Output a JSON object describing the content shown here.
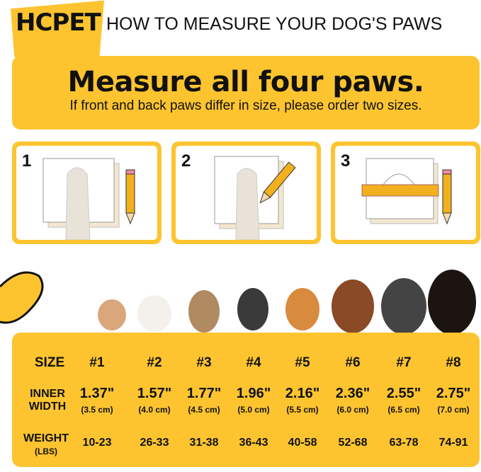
{
  "brand": {
    "logo": "HCPET",
    "title": "HOW TO MEASURE YOUR DOG'S PAWS",
    "accent": "#FDC430"
  },
  "banner": {
    "headline": "Measure all four paws.",
    "subtext": "If front and back paws differ in size, please order two sizes."
  },
  "steps": [
    {
      "number": "1"
    },
    {
      "number": "2"
    },
    {
      "number": "3"
    }
  ],
  "size_table": {
    "labels": {
      "size": "SIZE",
      "width_1": "INNER",
      "width_2": "WIDTH",
      "weight_1": "WEIGHT",
      "weight_2": "(LBS)"
    },
    "columns": [
      {
        "size": "#1",
        "inch": "1.37\"",
        "cm": "(3.5 cm)",
        "weight": "10-23"
      },
      {
        "size": "#2",
        "inch": "1.57\"",
        "cm": "(4.0 cm)",
        "weight": "26-33"
      },
      {
        "size": "#3",
        "inch": "1.77\"",
        "cm": "(4.5 cm)",
        "weight": "31-38"
      },
      {
        "size": "#4",
        "inch": "1.96\"",
        "cm": "(5.0 cm)",
        "weight": "36-43"
      },
      {
        "size": "#5",
        "inch": "2.16\"",
        "cm": "(5.5 cm)",
        "weight": "40-58"
      },
      {
        "size": "#6",
        "inch": "2.36\"",
        "cm": "(6.0 cm)",
        "weight": "52-68"
      },
      {
        "size": "#7",
        "inch": "2.55\"",
        "cm": "(6.5 cm)",
        "weight": "63-78"
      },
      {
        "size": "#8",
        "inch": "2.75\"",
        "cm": "(7.0 cm)",
        "weight": "74-91"
      }
    ]
  }
}
